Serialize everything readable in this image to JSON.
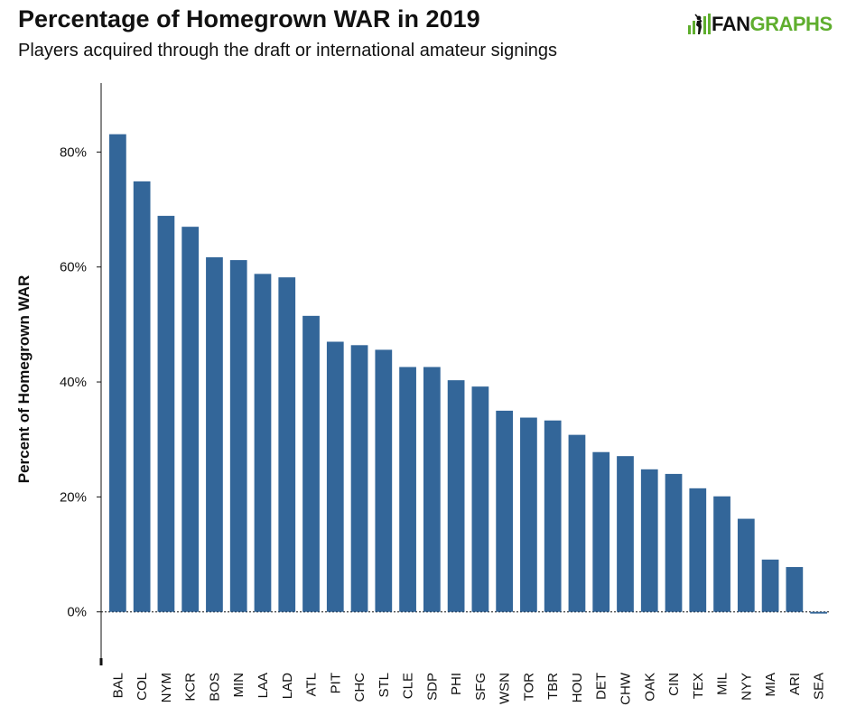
{
  "header": {
    "title": "Percentage of Homegrown WAR in 2019",
    "subtitle": "Players acquired through the draft or international amateur signings",
    "logo_text_a": "FAN",
    "logo_text_b": "GRAPHS",
    "logo_color": "#5fae2e"
  },
  "chart_data": {
    "type": "bar",
    "ylabel": "Percent of Homegrown WAR",
    "xlabel": "",
    "ylim": [
      -9,
      92
    ],
    "yticks": [
      0,
      20,
      40,
      60,
      80
    ],
    "ytick_labels": [
      "0%",
      "20%",
      "40%",
      "60%",
      "80%"
    ],
    "bar_color": "#336699",
    "categories": [
      "BAL",
      "COL",
      "NYM",
      "KCR",
      "BOS",
      "MIN",
      "LAA",
      "LAD",
      "ATL",
      "PIT",
      "CHC",
      "STL",
      "CLE",
      "SDP",
      "PHI",
      "SFG",
      "WSN",
      "TOR",
      "TBR",
      "HOU",
      "DET",
      "CHW",
      "OAK",
      "CIN",
      "TEX",
      "MIL",
      "NYY",
      "MIA",
      "ARI",
      "SEA"
    ],
    "values": [
      83.1,
      74.9,
      68.9,
      67.0,
      61.7,
      61.2,
      58.8,
      58.2,
      51.5,
      47.0,
      46.4,
      45.6,
      42.6,
      42.6,
      40.3,
      39.2,
      35.0,
      33.8,
      33.3,
      30.8,
      27.8,
      27.1,
      24.8,
      24.0,
      21.5,
      20.1,
      16.2,
      9.1,
      7.8,
      -0.3
    ],
    "grid": false,
    "legend": "none"
  }
}
